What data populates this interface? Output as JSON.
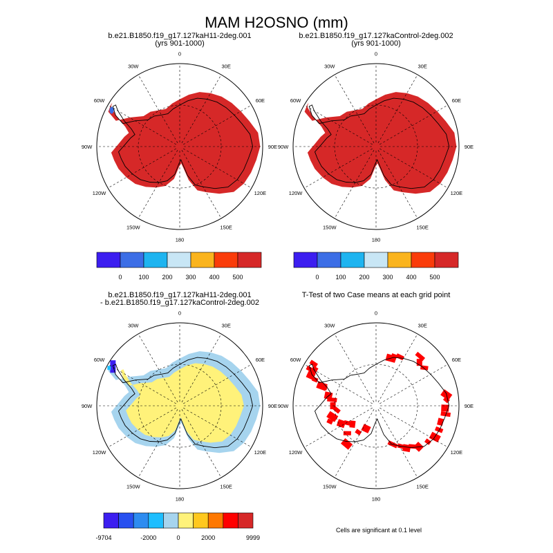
{
  "title": "MAM H2OSNO (mm)",
  "colors": {
    "land_red": "#d62828",
    "sig_red": "#ff0000",
    "diff_yellow": "#fff27a",
    "diff_lightblue": "#a6d4ee"
  },
  "chart_data": [
    {
      "type": "polar-map",
      "title_line1": "b.e21.B1850.f19_g17.127kaH11-2deg.001",
      "title_line2": "(yrs 901-1000)",
      "lon_labels": [
        "0",
        "30E",
        "60E",
        "90E",
        "120E",
        "150E",
        "180",
        "150W",
        "120W",
        "90W",
        "60W",
        "30W"
      ],
      "field": "H2OSNO",
      "dominant_bin": "> 500",
      "colorbar": {
        "colors": [
          "#3c1ef0",
          "#3c6ee6",
          "#1eb4f0",
          "#c8e6f5",
          "#fab41e",
          "#fa3c0a",
          "#d62828"
        ],
        "labels": [
          "0",
          "100",
          "200",
          "300",
          "400",
          "500"
        ]
      }
    },
    {
      "type": "polar-map",
      "title_line1": "b.e21.B1850.f19_g17.127kaControl-2deg.002",
      "title_line2": "(yrs 901-1000)",
      "lon_labels": [
        "0",
        "30E",
        "60E",
        "90E",
        "120E",
        "150E",
        "180",
        "150W",
        "120W",
        "90W",
        "60W",
        "30W"
      ],
      "field": "H2OSNO",
      "dominant_bin": "> 500",
      "colorbar": {
        "colors": [
          "#3c1ef0",
          "#3c6ee6",
          "#1eb4f0",
          "#c8e6f5",
          "#fab41e",
          "#fa3c0a",
          "#d62828"
        ],
        "labels": [
          "0",
          "100",
          "200",
          "300",
          "400",
          "500"
        ]
      }
    },
    {
      "type": "polar-map",
      "title_line1": "b.e21.B1850.f19_g17.127kaH11-2deg.001",
      "title_line2": "- b.e21.B1850.f19_g17.127kaControl-2deg.002",
      "lon_labels": [
        "0",
        "30E",
        "60E",
        "90E",
        "120E",
        "150E",
        "180",
        "150W",
        "120W",
        "90W",
        "60W",
        "30W"
      ],
      "field": "difference",
      "colorbar": {
        "colors": [
          "#3c1ef0",
          "#2850f0",
          "#2d8cf0",
          "#1ebeff",
          "#a6d4ee",
          "#fff27a",
          "#ffc81e",
          "#ff7800",
          "#ff0000",
          "#d62828"
        ],
        "labels": [
          "-9704",
          "-2000",
          "0",
          "2000",
          "9999"
        ]
      }
    },
    {
      "type": "polar-map",
      "title_line1": "T-Test of two Case means at each grid point",
      "lon_labels": [
        "0",
        "30E",
        "60E",
        "90E",
        "120E",
        "150E",
        "180",
        "150W",
        "120W",
        "90W",
        "60W",
        "30W"
      ],
      "field": "significance",
      "caption": "Cells are significant at 0.1 level"
    }
  ]
}
